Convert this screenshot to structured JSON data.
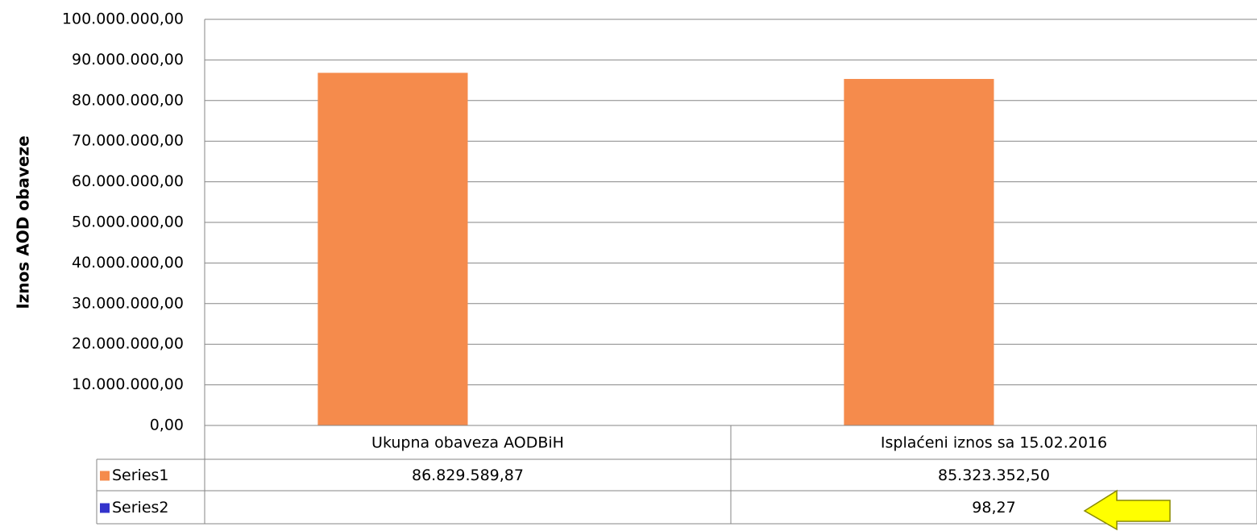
{
  "chart_data": {
    "type": "bar",
    "y_axis_label": "Iznos AOD obaveze",
    "categories": [
      "Ukupna obaveza AODBiH",
      "Isplaćeni iznos sa 15.02.2016"
    ],
    "series": [
      {
        "name": "Series1",
        "color": "#f58b4c",
        "values": [
          86829589.87,
          85323352.5
        ],
        "value_labels": [
          "86.829.589,87",
          "85.323.352,50"
        ]
      },
      {
        "name": "Series2",
        "color": "#3333cc",
        "values": [
          null,
          98.27
        ],
        "value_labels": [
          null,
          "98,27"
        ]
      }
    ],
    "ylim": [
      0,
      100000000
    ],
    "yticks": [
      {
        "value": 0,
        "label": "0,00"
      },
      {
        "value": 10000000,
        "label": "10.000.000,00"
      },
      {
        "value": 20000000,
        "label": "20.000.000,00"
      },
      {
        "value": 30000000,
        "label": "30.000.000,00"
      },
      {
        "value": 40000000,
        "label": "40.000.000,00"
      },
      {
        "value": 50000000,
        "label": "50.000.000,00"
      },
      {
        "value": 60000000,
        "label": "60.000.000,00"
      },
      {
        "value": 70000000,
        "label": "70.000.000,00"
      },
      {
        "value": 80000000,
        "label": "80.000.000,00"
      },
      {
        "value": 90000000,
        "label": "90.000.000,00"
      },
      {
        "value": 100000000,
        "label": "100.000.000,00"
      }
    ],
    "grid": true,
    "data_table": true
  }
}
